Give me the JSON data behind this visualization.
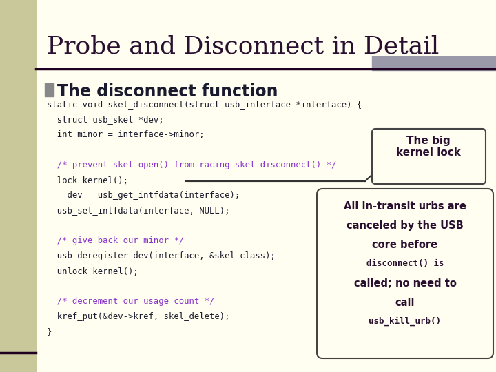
{
  "title": "Probe and Disconnect in Detail",
  "bg_color": "#FFFEF0",
  "left_bar_color": "#C8C89A",
  "title_color": "#2a1030",
  "header_bar_color": "#9999aa",
  "bullet_color": "#888888",
  "bullet_text": "The disconnect function",
  "bullet_text_color": "#1a1a2e",
  "code_color": "#1a1a2e",
  "comment_color": "#8833cc",
  "box1_text": "The big\nkernel lock",
  "box2_lines_normal": [
    "All in-transit urbs are",
    "canceled by the USB",
    "core before"
  ],
  "box2_line_mono1": "disconnect() is",
  "box2_lines_normal2": [
    "called; no need to",
    "call"
  ],
  "box2_line_mono2": "usb_kill_urb()",
  "box_bg": "#FFFEF0",
  "box_border": "#444444",
  "code_lines": [
    "static void skel_disconnect(struct usb_interface *interface) {",
    "  struct usb_skel *dev;",
    "  int minor = interface->minor;",
    "",
    "  /* prevent skel_open() from racing skel_disconnect() */",
    "  lock_kernel();",
    "    dev = usb_get_intfdata(interface);",
    "  usb_set_intfdata(interface, NULL);",
    "",
    "  /* give back our minor */",
    "  usb_deregister_dev(interface, &skel_class);",
    "  unlock_kernel();",
    "",
    "  /* decrement our usage count */",
    "  kref_put(&dev->kref, skel_delete);",
    "}"
  ],
  "comment_line_indices": [
    4,
    9,
    13
  ]
}
